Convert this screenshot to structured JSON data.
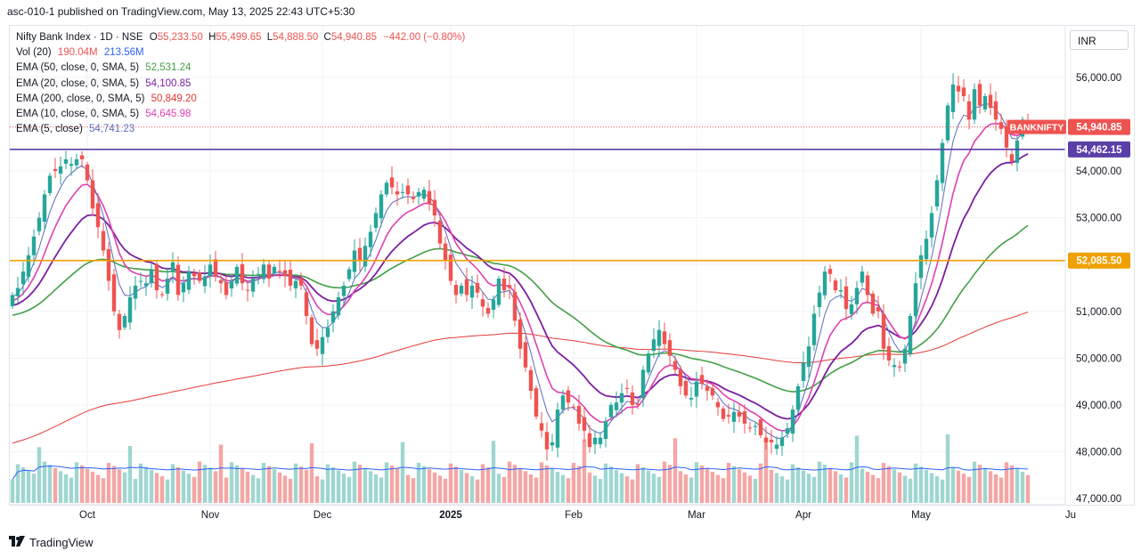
{
  "header": {
    "text": "asc-010-1 published on TradingView.com, May 13, 2025 22:43 UTC+5:30"
  },
  "currency": "INR",
  "brand": {
    "name": "TradingView",
    "logo_icon": "tradingview-logo-icon"
  },
  "legend": {
    "symbol": "Nifty Bank Index · 1D · NSE",
    "ohlc": [
      {
        "k": "O",
        "v": "55,233.50"
      },
      {
        "k": "H",
        "v": "55,499.65"
      },
      {
        "k": "L",
        "v": "54,888.50"
      },
      {
        "k": "C",
        "v": "54,940.85"
      }
    ],
    "change": "−442.00 (−0.80%)",
    "vol": {
      "label": "Vol (20)",
      "v1": "190.04M",
      "v2": "213.56M"
    },
    "emas": [
      {
        "label": "EMA (50, close, 0, SMA, 5)",
        "value": "52,531.24",
        "color": "#43a047"
      },
      {
        "label": "EMA (20, close, 0, SMA, 5)",
        "value": "54,100.85",
        "color": "#7b1fa2"
      },
      {
        "label": "EMA (200, close, 0, SMA, 5)",
        "value": "50,849.20",
        "color": "#e53935"
      },
      {
        "label": "EMA (10, close, 0, SMA, 5)",
        "value": "54,645.98",
        "color": "#e040b0"
      },
      {
        "label": "EMA (5, close)",
        "value": "54,741.23",
        "color": "#5c6bc0"
      }
    ]
  },
  "colors": {
    "up": "#26a69a",
    "down": "#ef5350",
    "vol_up": "#9fd6d1",
    "vol_down": "#f4a6a4",
    "vol_ma": "#2962ff",
    "hline_purple": "#5b3fa8",
    "hline_orange": "#f0a000",
    "ema50": "#43a047",
    "ema20": "#7b1fa2",
    "ema200": "#e53935",
    "ema10": "#e040b0",
    "ema5": "#5c6bc0"
  },
  "chart_data": {
    "type": "candlestick",
    "symbol": "BANKNIFTY",
    "y_axis": {
      "ticks": [
        "56,000.00",
        "55,000.00",
        "54,000.00",
        "53,000.00",
        "52,000.00",
        "51,000.00",
        "50,000.00",
        "49,000.00",
        "48,000.00",
        "47,000.00"
      ],
      "range": [
        46900,
        56900
      ]
    },
    "x_axis": {
      "ticks": [
        "Oct",
        "Nov",
        "Dec",
        "2025",
        "Feb",
        "Mar",
        "Apr",
        "May",
        "Ju"
      ]
    },
    "price_labels": [
      {
        "text": "BANKNIFTY",
        "value": "54,940.85",
        "price": 54940.85,
        "color": "#ef5350"
      },
      {
        "text": "",
        "value": "54,462.15",
        "price": 54462.15,
        "color": "#5b3fa8"
      },
      {
        "text": "",
        "value": "52,085.50",
        "price": 52085.5,
        "color": "#f0a000"
      }
    ],
    "horizontal_lines": [
      {
        "price": 54462.15,
        "color": "#5b3fa8"
      },
      {
        "price": 52085.5,
        "color": "#f0a000"
      }
    ],
    "last_close": 54940.85,
    "closes": [
      51350,
      51500,
      51850,
      52200,
      52600,
      53000,
      53500,
      53900,
      54000,
      54100,
      54250,
      54150,
      54250,
      54250,
      53800,
      53200,
      52800,
      52300,
      51650,
      51000,
      50600,
      50900,
      51300,
      51550,
      51650,
      51600,
      51900,
      51450,
      51350,
      51700,
      52050,
      51350,
      51600,
      51850,
      51750,
      51650,
      51750,
      52000,
      51750,
      51600,
      51350,
      51650,
      51950,
      51600,
      51450,
      51700,
      51800,
      52000,
      51700,
      51950,
      51850,
      51750,
      51550,
      51650,
      51550,
      50900,
      50300,
      50200,
      50450,
      50650,
      51000,
      51300,
      51550,
      51900,
      52300,
      52100,
      52400,
      52700,
      53100,
      53500,
      53750,
      53650,
      53500,
      53550,
      53500,
      53400,
      53550,
      53600,
      53300,
      53050,
      52450,
      52100,
      51650,
      51350,
      51550,
      51350,
      51550,
      51400,
      51100,
      50950,
      51250,
      51700,
      51450,
      51500,
      50800,
      50200,
      49800,
      49300,
      48750,
      48450,
      48050,
      48200,
      48900,
      49200,
      49050,
      48950,
      48600,
      48450,
      48100,
      48300,
      48300,
      48650,
      49000,
      49050,
      49250,
      49350,
      49000,
      49000,
      49750,
      50100,
      50400,
      50600,
      50300,
      50050,
      49750,
      49400,
      49200,
      49150,
      49500,
      49450,
      49300,
      49200,
      48950,
      48700,
      48750,
      48850,
      48750,
      48600,
      48500,
      48550,
      48350,
      48200,
      48200,
      48150,
      48300,
      48500,
      48900,
      49400,
      49900,
      50250,
      50950,
      51400,
      51850,
      51800,
      51450,
      51450,
      51050,
      51150,
      51500,
      51850,
      51350,
      50950,
      51000,
      50200,
      49950,
      49850,
      49800,
      50200,
      50900,
      51600,
      52200,
      52550,
      53100,
      53800,
      54600,
      55400,
      55850,
      55700,
      55600,
      55100,
      55750,
      55400,
      55600,
      55350,
      55100,
      54900,
      54500,
      54200,
      54650,
      55100,
      54940.85
    ],
    "ema5_last": 54741.23,
    "ema10_last": 54645.98,
    "ema20_last": 54100.85,
    "ema50_last": 52531.24,
    "ema200_last": 50849.2
  }
}
